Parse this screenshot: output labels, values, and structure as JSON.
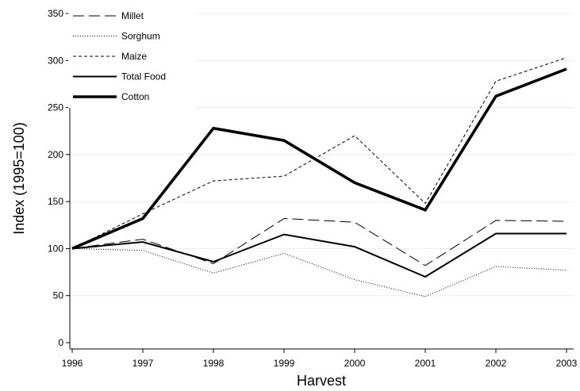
{
  "chart_data": {
    "type": "line",
    "xlabel": "Harvest",
    "ylabel": "Index (1995=100)",
    "x": [
      "1996",
      "1997",
      "1998",
      "1999",
      "2000",
      "2001",
      "2002",
      "2003"
    ],
    "ylim": [
      0,
      350
    ],
    "yticks": [
      "0",
      "50",
      "100",
      "150",
      "200",
      "250",
      "300",
      "350"
    ],
    "grid": true,
    "legend_position": "top-left",
    "series": [
      {
        "name": "Millet",
        "style": "long-dash",
        "color": "#000000",
        "values": [
          100,
          110,
          84,
          132,
          128,
          82,
          130,
          129
        ]
      },
      {
        "name": "Sorghum",
        "style": "dotted",
        "color": "#000000",
        "values": [
          100,
          98,
          74,
          95,
          67,
          49,
          81,
          77
        ]
      },
      {
        "name": "Maize",
        "style": "short-dash",
        "color": "#000000",
        "values": [
          100,
          137,
          172,
          177,
          220,
          148,
          278,
          303
        ]
      },
      {
        "name": "Total Food",
        "style": "solid",
        "color": "#000000",
        "values": [
          100,
          107,
          86,
          115,
          102,
          70,
          116,
          116
        ]
      },
      {
        "name": "Cotton",
        "style": "solid-thick",
        "color": "#000000",
        "values": [
          100,
          132,
          228,
          215,
          170,
          141,
          262,
          291
        ]
      }
    ]
  }
}
